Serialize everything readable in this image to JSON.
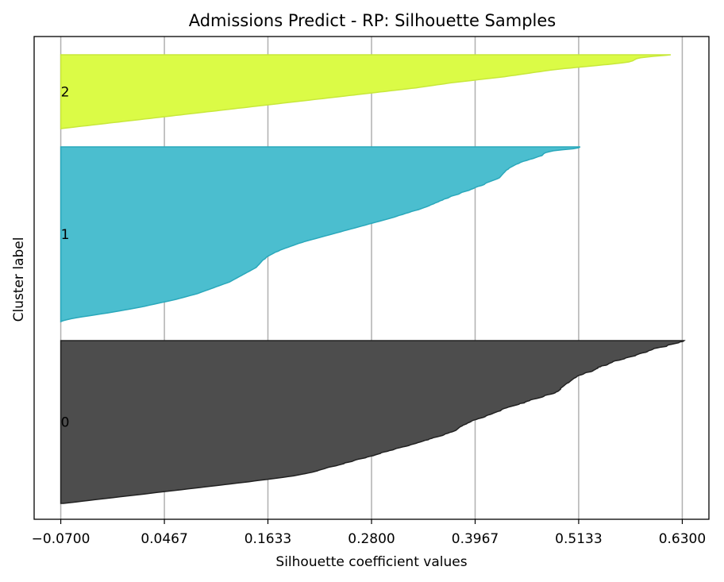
{
  "chart_data": {
    "type": "area",
    "title": "Admissions Predict - RP: Silhouette Samples",
    "xlabel": "Silhouette coefficient values",
    "ylabel": "Cluster label",
    "xlim": [
      -0.1,
      0.66
    ],
    "x_ticks": [
      "−0.0700",
      "0.0467",
      "0.1633",
      "0.2800",
      "0.3967",
      "0.5133",
      "0.6300"
    ],
    "x_tick_values": [
      -0.07,
      0.0467,
      0.1633,
      0.28,
      0.3967,
      0.5133,
      0.63
    ],
    "grid": "vertical",
    "clusters": [
      {
        "label": "0",
        "color": "#4d4d4d",
        "edge": "#222222",
        "values": [
          0.632,
          0.631,
          0.627,
          0.626,
          0.622,
          0.618,
          0.614,
          0.613,
          0.612,
          0.606,
          0.602,
          0.598,
          0.597,
          0.595,
          0.592,
          0.591,
          0.589,
          0.585,
          0.582,
          0.58,
          0.578,
          0.577,
          0.573,
          0.569,
          0.566,
          0.565,
          0.562,
          0.559,
          0.554,
          0.552,
          0.551,
          0.549,
          0.547,
          0.546,
          0.544,
          0.539,
          0.538,
          0.535,
          0.535,
          0.533,
          0.532,
          0.53,
          0.529,
          0.527,
          0.522,
          0.52,
          0.519,
          0.517,
          0.514,
          0.512,
          0.511,
          0.51,
          0.508,
          0.507,
          0.506,
          0.505,
          0.504,
          0.503,
          0.502,
          0.5,
          0.499,
          0.498,
          0.497,
          0.496,
          0.495,
          0.494,
          0.493,
          0.493,
          0.492,
          0.491,
          0.49,
          0.488,
          0.487,
          0.485,
          0.482,
          0.478,
          0.475,
          0.474,
          0.472,
          0.469,
          0.466,
          0.462,
          0.459,
          0.458,
          0.455,
          0.453,
          0.452,
          0.447,
          0.446,
          0.443,
          0.44,
          0.437,
          0.434,
          0.432,
          0.429,
          0.427,
          0.426,
          0.425,
          0.422,
          0.42,
          0.418,
          0.416,
          0.414,
          0.411,
          0.409,
          0.408,
          0.406,
          0.403,
          0.4,
          0.398,
          0.395,
          0.393,
          0.392,
          0.39,
          0.388,
          0.387,
          0.385,
          0.383,
          0.382,
          0.38,
          0.379,
          0.378,
          0.377,
          0.376,
          0.375,
          0.373,
          0.371,
          0.368,
          0.366,
          0.363,
          0.362,
          0.36,
          0.357,
          0.354,
          0.35,
          0.348,
          0.345,
          0.344,
          0.34,
          0.338,
          0.335,
          0.332,
          0.33,
          0.327,
          0.324,
          0.322,
          0.319,
          0.315,
          0.312,
          0.308,
          0.306,
          0.304,
          0.3,
          0.298,
          0.294,
          0.291,
          0.29,
          0.287,
          0.284,
          0.282,
          0.278,
          0.275,
          0.273,
          0.269,
          0.265,
          0.262,
          0.26,
          0.258,
          0.254,
          0.25,
          0.249,
          0.246,
          0.243,
          0.24,
          0.236,
          0.232,
          0.229,
          0.227,
          0.224,
          0.221,
          0.219,
          0.216,
          0.213,
          0.209,
          0.205,
          0.2,
          0.196,
          0.192,
          0.186,
          0.18,
          0.174,
          0.168,
          0.162,
          0.155,
          0.148,
          0.142,
          0.135,
          0.128,
          0.122,
          0.115,
          0.108,
          0.101,
          0.094,
          0.087,
          0.08,
          0.073,
          0.066,
          0.059,
          0.052,
          0.045,
          0.038,
          0.031,
          0.024,
          0.017,
          0.01,
          0.003,
          -0.004,
          -0.011,
          -0.018,
          -0.025,
          -0.032,
          -0.039,
          -0.046,
          -0.053,
          -0.06,
          -0.067
        ]
      },
      {
        "label": "1",
        "color": "#4bbecf",
        "edge": "#2aa8bb",
        "values": [
          0.515,
          0.513,
          0.507,
          0.495,
          0.485,
          0.48,
          0.476,
          0.474,
          0.473,
          0.472,
          0.468,
          0.465,
          0.462,
          0.458,
          0.455,
          0.451,
          0.448,
          0.446,
          0.443,
          0.441,
          0.439,
          0.437,
          0.435,
          0.434,
          0.432,
          0.431,
          0.43,
          0.429,
          0.428,
          0.427,
          0.426,
          0.425,
          0.424,
          0.422,
          0.419,
          0.416,
          0.413,
          0.41,
          0.408,
          0.407,
          0.404,
          0.4,
          0.397,
          0.395,
          0.392,
          0.39,
          0.386,
          0.382,
          0.38,
          0.378,
          0.374,
          0.37,
          0.368,
          0.366,
          0.362,
          0.36,
          0.357,
          0.355,
          0.352,
          0.35,
          0.347,
          0.345,
          0.342,
          0.339,
          0.336,
          0.333,
          0.329,
          0.325,
          0.322,
          0.318,
          0.315,
          0.311,
          0.308,
          0.305,
          0.301,
          0.297,
          0.293,
          0.289,
          0.285,
          0.281,
          0.277,
          0.273,
          0.269,
          0.265,
          0.261,
          0.257,
          0.253,
          0.249,
          0.245,
          0.241,
          0.237,
          0.233,
          0.229,
          0.225,
          0.221,
          0.217,
          0.213,
          0.209,
          0.205,
          0.202,
          0.198,
          0.195,
          0.192,
          0.189,
          0.186,
          0.183,
          0.18,
          0.177,
          0.175,
          0.172,
          0.17,
          0.168,
          0.166,
          0.164,
          0.162,
          0.161,
          0.16,
          0.158,
          0.157,
          0.156,
          0.155,
          0.154,
          0.153,
          0.152,
          0.151,
          0.15,
          0.148,
          0.146,
          0.144,
          0.142,
          0.14,
          0.138,
          0.136,
          0.134,
          0.132,
          0.13,
          0.128,
          0.126,
          0.124,
          0.122,
          0.12,
          0.117,
          0.114,
          0.111,
          0.108,
          0.105,
          0.102,
          0.099,
          0.096,
          0.093,
          0.09,
          0.087,
          0.084,
          0.08,
          0.076,
          0.072,
          0.068,
          0.064,
          0.06,
          0.055,
          0.05,
          0.045,
          0.04,
          0.035,
          0.03,
          0.025,
          0.02,
          0.014,
          0.008,
          0.002,
          -0.004,
          -0.01,
          -0.017,
          -0.024,
          -0.031,
          -0.038,
          -0.045,
          -0.052,
          -0.058,
          -0.063,
          -0.067,
          -0.07
        ]
      },
      {
        "label": "2",
        "color": "#dbfb46",
        "edge": "#c8e83a",
        "values": [
          0.617,
          0.612,
          0.605,
          0.598,
          0.592,
          0.587,
          0.583,
          0.58,
          0.578,
          0.577,
          0.576,
          0.575,
          0.574,
          0.572,
          0.57,
          0.566,
          0.562,
          0.557,
          0.552,
          0.546,
          0.54,
          0.534,
          0.528,
          0.522,
          0.516,
          0.51,
          0.504,
          0.498,
          0.492,
          0.487,
          0.482,
          0.478,
          0.474,
          0.47,
          0.466,
          0.462,
          0.458,
          0.454,
          0.45,
          0.446,
          0.442,
          0.438,
          0.434,
          0.43,
          0.425,
          0.42,
          0.415,
          0.41,
          0.405,
          0.4,
          0.395,
          0.39,
          0.385,
          0.38,
          0.375,
          0.37,
          0.366,
          0.362,
          0.358,
          0.354,
          0.35,
          0.346,
          0.342,
          0.338,
          0.334,
          0.33,
          0.325,
          0.32,
          0.315,
          0.31,
          0.305,
          0.3,
          0.295,
          0.29,
          0.285,
          0.28,
          0.275,
          0.27,
          0.265,
          0.26,
          0.255,
          0.25,
          0.245,
          0.24,
          0.235,
          0.23,
          0.225,
          0.22,
          0.215,
          0.21,
          0.205,
          0.2,
          0.195,
          0.19,
          0.185,
          0.18,
          0.175,
          0.17,
          0.165,
          0.16,
          0.155,
          0.15,
          0.145,
          0.14,
          0.135,
          0.13,
          0.125,
          0.12,
          0.115,
          0.11,
          0.105,
          0.1,
          0.095,
          0.09,
          0.085,
          0.08,
          0.075,
          0.07,
          0.065,
          0.06,
          0.055,
          0.05,
          0.045,
          0.04,
          0.035,
          0.03,
          0.025,
          0.02,
          0.015,
          0.01,
          0.005,
          0.0,
          -0.005,
          -0.01,
          -0.015,
          -0.02,
          -0.025,
          -0.03,
          -0.035,
          -0.04,
          -0.045,
          -0.05,
          -0.055,
          -0.06,
          -0.065,
          -0.07
        ]
      }
    ]
  }
}
